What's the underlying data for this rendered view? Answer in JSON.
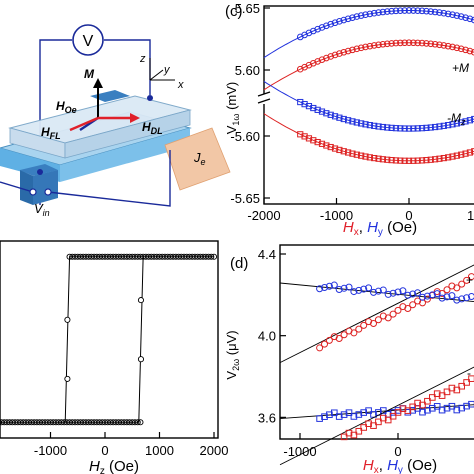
{
  "schematic": {
    "v_circle_label": "V",
    "axis_z": "z",
    "axis_y": "y",
    "axis_x": "x",
    "m_label": "M",
    "h_oe": "H",
    "h_oe_sub": "Oe",
    "h_fl": "H",
    "h_fl_sub": "FL",
    "h_dl": "H",
    "h_dl_sub": "DL",
    "je_label": "J",
    "je_sub": "e",
    "vin_label": "V",
    "vin_sub": "in",
    "colors": {
      "h_fl": "#e0202a",
      "h_dl": "#e0202a",
      "wire": "#1a2a9a",
      "je_arrow": "#f2c7a6"
    }
  },
  "panel_c_label": "(c)",
  "panel_d_label": "(d)",
  "panel_c_legend_top": "+M",
  "panel_c_legend_bottom": "-M",
  "panel_c_legend_bottom_sub": "z",
  "panel_d_legend_top": "+",
  "panel_d_legend_bottom": "-",
  "chart_data": [
    {
      "id": "panel_b",
      "type": "line",
      "xlabel": "H",
      "xlabel_sub": "z",
      "xlabel_unit": " (Oe)",
      "xlim": [
        -2000,
        2000
      ],
      "xticks": [
        "-1000",
        "0",
        "1000",
        "2000"
      ],
      "ylim": [
        0,
        1
      ],
      "series": [
        {
          "branch": "sweep_down",
          "x": [
            2000,
            900,
            700,
            650,
            640,
            620,
            600,
            -400,
            -550,
            -600,
            -650,
            -700,
            -2000
          ],
          "y": [
            0.92,
            0.92,
            0.92,
            0.92,
            0.92,
            0.92,
            0.92,
            0.92,
            0.92,
            0.92,
            0.92,
            0.92,
            0.92
          ]
        },
        {
          "branch": "hysteresis_loop",
          "x": [
            -2000,
            -700,
            -680,
            -650,
            -620,
            -600,
            550,
            580,
            620,
            660,
            700,
            2000
          ],
          "y": [
            0.08,
            0.08,
            0.25,
            0.55,
            0.8,
            0.92,
            0.08,
            0.25,
            0.55,
            0.8,
            0.92,
            0.92
          ]
        }
      ],
      "switching_fields": [
        -650,
        620
      ]
    },
    {
      "id": "panel_c",
      "type": "scatter",
      "xlabel_parts": [
        "H",
        "x",
        ", ",
        "H",
        "y",
        " (Oe)"
      ],
      "ylabel": "V",
      "ylabel_sub": "1ω",
      "ylabel_unit": " (mV)",
      "xlim": [
        -2000,
        2000
      ],
      "xticks": [
        "-2000",
        "-1000",
        "0",
        "1000"
      ],
      "yticks_top": [
        "5.65",
        "5.60"
      ],
      "yticks_bottom": [
        "-5.60",
        "-5.65"
      ],
      "series": [
        {
          "color": "#2233dd",
          "apex": 5.648,
          "curv": 9.5e-09,
          "branch": "top"
        },
        {
          "color": "#dd2222",
          "apex": 5.622,
          "curv": 9.5e-09,
          "branch": "top"
        },
        {
          "color": "#2233dd",
          "apex": -5.594,
          "curv": -9.5e-09,
          "branch": "bottom"
        },
        {
          "color": "#dd2222",
          "apex": -5.62,
          "curv": -9.5e-09,
          "branch": "bottom"
        }
      ],
      "x_points_range": [
        -1500,
        1500
      ]
    },
    {
      "id": "panel_d",
      "type": "scatter",
      "xlabel_parts": [
        "H",
        "x",
        ", ",
        "H",
        "y",
        " (Oe)"
      ],
      "ylabel": "V",
      "ylabel_sub": "2ω",
      "ylabel_unit": " (μV)",
      "xlim": [
        -1100,
        1100
      ],
      "ylim": [
        3.45,
        4.4
      ],
      "xticks": [
        -1000,
        0,
        1000
      ],
      "yticks": [
        3.6,
        4.0,
        4.4
      ],
      "series": [
        {
          "color": "#dd2222",
          "marker": "circle",
          "slope": 0.00021,
          "intercept": 4.12
        },
        {
          "color": "#2233dd",
          "marker": "circle",
          "slope": -4e-05,
          "intercept": 4.21
        },
        {
          "color": "#2233dd",
          "marker": "square",
          "slope": 3e-05,
          "intercept": 3.63
        },
        {
          "color": "#dd2222",
          "marker": "square",
          "slope": 0.00021,
          "intercept": 3.62
        }
      ],
      "x_points_range": [
        -800,
        1100
      ]
    }
  ]
}
